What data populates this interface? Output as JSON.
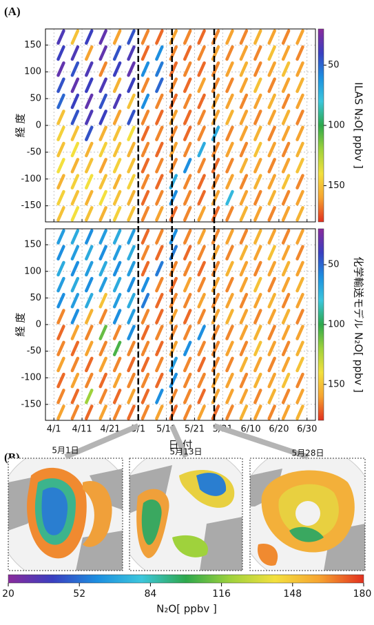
{
  "panels": [
    "(A)",
    "(B)"
  ],
  "colormap": [
    "#8a2b9c",
    "#3a3fc0",
    "#1d8fe0",
    "#3cc6dc",
    "#2ea84c",
    "#9fd23c",
    "#f3e03e",
    "#f6a431",
    "#e2301f"
  ],
  "chart_data": [
    {
      "type": "heatmap",
      "ylabel": "経 度",
      "x": [
        2.5,
        7.5,
        12.5,
        17.5,
        22.5,
        27.5,
        32.5,
        37.5,
        42.5,
        47.5,
        52.5,
        57.5,
        62.5,
        67.5,
        72.5,
        77.5,
        82.5,
        87.5
      ],
      "y": [
        165,
        135,
        105,
        75,
        45,
        15,
        -15,
        -45,
        -75,
        -105,
        -135,
        -165
      ],
      "z": [
        [
          35,
          150,
          40,
          30,
          160,
          45,
          165,
          170,
          160,
          165,
          170,
          165,
          160,
          165,
          155,
          160,
          165,
          160
        ],
        [
          40,
          35,
          160,
          30,
          45,
          35,
          170,
          60,
          165,
          170,
          165,
          160,
          165,
          160,
          165,
          150,
          160,
          165
        ],
        [
          30,
          45,
          35,
          165,
          40,
          30,
          60,
          55,
          170,
          165,
          170,
          165,
          160,
          155,
          165,
          160,
          150,
          160
        ],
        [
          45,
          30,
          40,
          35,
          155,
          40,
          165,
          50,
          165,
          170,
          160,
          165,
          165,
          160,
          150,
          165,
          160,
          155
        ],
        [
          50,
          40,
          30,
          45,
          35,
          150,
          60,
          165,
          170,
          165,
          170,
          160,
          160,
          165,
          160,
          155,
          165,
          160
        ],
        [
          150,
          45,
          35,
          40,
          160,
          45,
          165,
          170,
          160,
          170,
          165,
          160,
          155,
          160,
          165,
          160,
          155,
          165
        ],
        [
          145,
          150,
          45,
          155,
          150,
          140,
          170,
          165,
          165,
          170,
          165,
          70,
          165,
          160,
          155,
          165,
          160,
          160
        ],
        [
          150,
          140,
          155,
          145,
          150,
          155,
          165,
          170,
          160,
          165,
          70,
          165,
          160,
          165,
          150,
          160,
          165,
          155
        ],
        [
          140,
          155,
          150,
          160,
          145,
          150,
          170,
          165,
          165,
          60,
          165,
          170,
          165,
          155,
          160,
          165,
          160,
          150
        ],
        [
          155,
          145,
          140,
          150,
          155,
          145,
          165,
          170,
          70,
          165,
          170,
          165,
          160,
          165,
          155,
          160,
          150,
          165
        ],
        [
          145,
          150,
          155,
          140,
          150,
          155,
          170,
          165,
          60,
          165,
          170,
          160,
          75,
          160,
          165,
          155,
          165,
          160
        ],
        [
          150,
          140,
          150,
          155,
          145,
          150,
          165,
          160,
          170,
          165,
          160,
          170,
          165,
          155,
          160,
          165,
          160,
          155
        ]
      ],
      "xlim": [
        -3,
        93
      ],
      "xticks": [
        {
          "value": 0,
          "label": "4/1"
        },
        {
          "value": 10,
          "label": "4/11"
        },
        {
          "value": 20,
          "label": "4/21"
        },
        {
          "value": 30,
          "label": "5/1"
        },
        {
          "value": 40,
          "label": "5/11"
        },
        {
          "value": 50,
          "label": "5/21"
        },
        {
          "value": 60,
          "label": "5/31"
        },
        {
          "value": 70,
          "label": "6/10"
        },
        {
          "value": 80,
          "label": "6/20"
        },
        {
          "value": 90,
          "label": "6/30"
        }
      ],
      "ylim": [
        -180,
        180
      ],
      "yticks": [
        -150,
        -100,
        -50,
        0,
        50,
        100,
        150
      ],
      "grid": true,
      "vlines": [
        30,
        42,
        57
      ],
      "colorbar": {
        "label": "ILAS N₂O[ ppbv ]",
        "lim": [
          20,
          180
        ],
        "ticks": [
          50,
          100,
          150
        ]
      }
    },
    {
      "type": "heatmap",
      "ylabel": "経 度",
      "xlabel": "日 付",
      "x": [
        2.5,
        7.5,
        12.5,
        17.5,
        22.5,
        27.5,
        32.5,
        37.5,
        42.5,
        47.5,
        52.5,
        57.5,
        62.5,
        67.5,
        72.5,
        77.5,
        82.5,
        87.5
      ],
      "y": [
        165,
        135,
        105,
        75,
        45,
        15,
        -15,
        -45,
        -75,
        -105,
        -135,
        -165
      ],
      "z": [
        [
          65,
          70,
          60,
          65,
          70,
          65,
          170,
          165,
          60,
          165,
          160,
          165,
          160,
          165,
          155,
          160,
          165,
          160
        ],
        [
          60,
          65,
          70,
          60,
          65,
          70,
          165,
          170,
          55,
          170,
          165,
          160,
          165,
          155,
          160,
          150,
          160,
          165
        ],
        [
          70,
          60,
          65,
          70,
          60,
          65,
          170,
          55,
          165,
          165,
          170,
          165,
          155,
          160,
          165,
          160,
          155,
          160
        ],
        [
          65,
          70,
          60,
          65,
          70,
          60,
          60,
          165,
          170,
          160,
          165,
          160,
          165,
          160,
          150,
          165,
          160,
          155
        ],
        [
          60,
          65,
          70,
          150,
          65,
          70,
          55,
          170,
          165,
          165,
          160,
          165,
          160,
          165,
          160,
          155,
          165,
          160
        ],
        [
          165,
          60,
          155,
          165,
          60,
          65,
          165,
          170,
          160,
          170,
          165,
          160,
          155,
          160,
          165,
          160,
          155,
          165
        ],
        [
          170,
          160,
          165,
          110,
          165,
          60,
          170,
          165,
          165,
          165,
          60,
          165,
          165,
          160,
          155,
          165,
          160,
          160
        ],
        [
          165,
          170,
          160,
          165,
          105,
          165,
          165,
          170,
          160,
          60,
          165,
          165,
          160,
          165,
          150,
          160,
          165,
          155
        ],
        [
          160,
          165,
          170,
          160,
          165,
          170,
          170,
          165,
          65,
          165,
          170,
          165,
          165,
          155,
          160,
          165,
          160,
          150
        ],
        [
          170,
          160,
          165,
          170,
          160,
          165,
          165,
          170,
          60,
          165,
          165,
          160,
          160,
          165,
          155,
          160,
          150,
          165
        ],
        [
          165,
          170,
          120,
          165,
          170,
          160,
          170,
          60,
          165,
          165,
          170,
          160,
          160,
          160,
          165,
          155,
          165,
          160
        ],
        [
          160,
          165,
          170,
          160,
          165,
          170,
          165,
          160,
          170,
          165,
          160,
          170,
          165,
          155,
          160,
          165,
          160,
          155
        ]
      ],
      "xlim": [
        -3,
        93
      ],
      "xticks": [
        {
          "value": 0,
          "label": "4/1"
        },
        {
          "value": 10,
          "label": "4/11"
        },
        {
          "value": 20,
          "label": "4/21"
        },
        {
          "value": 30,
          "label": "5/1"
        },
        {
          "value": 40,
          "label": "5/11"
        },
        {
          "value": 50,
          "label": "5/21"
        },
        {
          "value": 60,
          "label": "5/31"
        },
        {
          "value": 70,
          "label": "6/10"
        },
        {
          "value": 80,
          "label": "6/20"
        },
        {
          "value": 90,
          "label": "6/30"
        }
      ],
      "ylim": [
        -180,
        180
      ],
      "yticks": [
        -150,
        -100,
        -50,
        0,
        50,
        100,
        150
      ],
      "grid": true,
      "vlines": [
        30,
        42,
        57
      ],
      "colorbar": {
        "label": "化学輸送モデル N₂O[ ppbv ]",
        "lim": [
          20,
          180
        ],
        "ticks": [
          50,
          100,
          150
        ]
      }
    },
    {
      "type": "maps",
      "titles": [
        "5月1日",
        "5月13日",
        "5月28日"
      ],
      "colorbar": {
        "label": "N₂O[ ppbv ]",
        "lim": [
          20,
          180
        ],
        "ticks": [
          20,
          52,
          84,
          116,
          148,
          180
        ]
      }
    }
  ]
}
